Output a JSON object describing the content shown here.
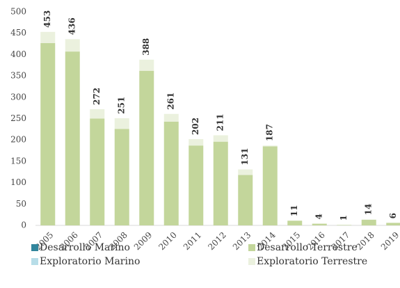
{
  "chart_data": {
    "type": "stacked_bar",
    "categories": [
      "2005",
      "2006",
      "2007",
      "2008",
      "2009",
      "2010",
      "2011",
      "2012",
      "2013",
      "2014",
      "2015",
      "2016",
      "2017",
      "2018",
      "2019"
    ],
    "series": [
      {
        "name": "Desarrollo Marino",
        "color": "#31859c",
        "values": [
          0,
          0,
          0,
          0,
          0,
          0,
          0,
          0,
          0,
          0,
          0,
          0,
          0,
          0,
          0
        ]
      },
      {
        "name": "Desarrollo Terrestre",
        "color": "#c3d69b",
        "values": [
          427,
          407,
          250,
          226,
          362,
          243,
          187,
          196,
          118,
          185,
          11,
          4,
          1,
          13,
          6
        ]
      },
      {
        "name": "Exploratorio Marino",
        "color": "#b7dde8",
        "values": [
          0,
          0,
          0,
          0,
          0,
          0,
          0,
          0,
          0,
          0,
          0,
          0,
          0,
          0,
          0
        ]
      },
      {
        "name": "Exploratorio Terrestre",
        "color": "#ebf1de",
        "values": [
          26,
          29,
          22,
          25,
          26,
          18,
          15,
          15,
          13,
          2,
          0,
          0,
          0,
          1,
          0
        ]
      }
    ],
    "totals": [
      453,
      436,
      272,
      251,
      388,
      261,
      202,
      211,
      131,
      187,
      11,
      4,
      1,
      14,
      6
    ],
    "ylim": [
      0,
      500
    ],
    "yticks": [
      0,
      50,
      100,
      150,
      200,
      250,
      300,
      350,
      400,
      450,
      500
    ],
    "grid": false
  }
}
